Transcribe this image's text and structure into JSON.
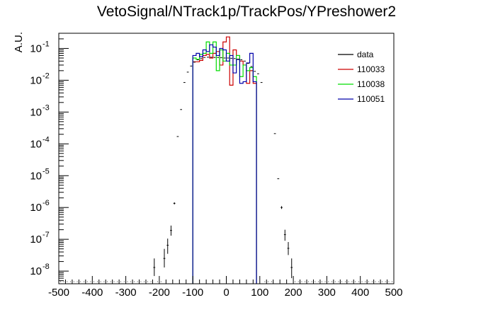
{
  "chart_data": {
    "type": "histogram",
    "title": "VetoSignal/NTrack1p/TrackPos/YPreshower2",
    "ylabel": "A.U.",
    "xlabel": "",
    "xlim": [
      -500,
      500
    ],
    "ylim": [
      4e-09,
      0.3
    ],
    "yscale": "log",
    "grid": false,
    "legend_position": "top-right",
    "colors": {
      "data": "#000000",
      "110033": "#cc0000",
      "110038": "#00dd00",
      "110051": "#0000aa"
    },
    "x_ticks": [
      "-500",
      "-400",
      "-300",
      "-200",
      "-100",
      "0",
      "100",
      "200",
      "300",
      "400",
      "500"
    ],
    "y_ticks": [
      {
        "base": "10",
        "exp": "-8",
        "value": 1e-08
      },
      {
        "base": "10",
        "exp": "-7",
        "value": 1e-07
      },
      {
        "base": "10",
        "exp": "-6",
        "value": 1e-06
      },
      {
        "base": "10",
        "exp": "-5",
        "value": 1e-05
      },
      {
        "base": "10",
        "exp": "-4",
        "value": 0.0001
      },
      {
        "base": "10",
        "exp": "-3",
        "value": 0.001
      },
      {
        "base": "10",
        "exp": "-2",
        "value": 0.01
      },
      {
        "base": "10",
        "exp": "-1",
        "value": 0.1
      }
    ],
    "bin_width": 10,
    "data_points": [
      {
        "x": -215,
        "y": 1.3e-08,
        "err": [
          6e-09,
          1.2e-08
        ]
      },
      {
        "x": -185,
        "y": 2.5e-08,
        "err": [
          1.2e-08,
          2.5e-08
        ]
      },
      {
        "x": -175,
        "y": 6.5e-08,
        "err": [
          3e-08,
          4e-08
        ]
      },
      {
        "x": -165,
        "y": 1.9e-07,
        "err": [
          6e-08,
          8e-08
        ]
      },
      {
        "x": -155,
        "y": 1.35e-06,
        "err": [
          1e-07,
          1e-07
        ]
      },
      {
        "x": -145,
        "y": 0.00017,
        "err": [
          0,
          0
        ]
      },
      {
        "x": -135,
        "y": 0.0012,
        "err": [
          0,
          0
        ]
      },
      {
        "x": -125,
        "y": 0.0085,
        "err": [
          0,
          0
        ]
      },
      {
        "x": -115,
        "y": 0.018,
        "err": [
          0,
          0
        ]
      },
      {
        "x": -105,
        "y": 0.028,
        "err": [
          0,
          0
        ]
      },
      {
        "x": -95,
        "y": 0.037,
        "err": [
          0,
          0
        ]
      },
      {
        "x": -85,
        "y": 0.044,
        "err": [
          0,
          0
        ]
      },
      {
        "x": -75,
        "y": 0.048,
        "err": [
          0,
          0
        ]
      },
      {
        "x": -65,
        "y": 0.052,
        "err": [
          0,
          0
        ]
      },
      {
        "x": -55,
        "y": 0.053,
        "err": [
          0,
          0
        ]
      },
      {
        "x": -45,
        "y": 0.053,
        "err": [
          0,
          0
        ]
      },
      {
        "x": -35,
        "y": 0.052,
        "err": [
          0,
          0
        ]
      },
      {
        "x": -25,
        "y": 0.052,
        "err": [
          0,
          0
        ]
      },
      {
        "x": -15,
        "y": 0.051,
        "err": [
          0,
          0
        ]
      },
      {
        "x": -5,
        "y": 0.05,
        "err": [
          0,
          0
        ]
      },
      {
        "x": 5,
        "y": 0.05,
        "err": [
          0,
          0
        ]
      },
      {
        "x": 15,
        "y": 0.049,
        "err": [
          0,
          0
        ]
      },
      {
        "x": 25,
        "y": 0.048,
        "err": [
          0,
          0
        ]
      },
      {
        "x": 35,
        "y": 0.046,
        "err": [
          0,
          0
        ]
      },
      {
        "x": 45,
        "y": 0.044,
        "err": [
          0,
          0
        ]
      },
      {
        "x": 55,
        "y": 0.04,
        "err": [
          0,
          0
        ]
      },
      {
        "x": 65,
        "y": 0.034,
        "err": [
          0,
          0
        ]
      },
      {
        "x": 75,
        "y": 0.027,
        "err": [
          0,
          0
        ]
      },
      {
        "x": 85,
        "y": 0.019,
        "err": [
          0,
          0
        ]
      },
      {
        "x": 95,
        "y": 0.016,
        "err": [
          0,
          0
        ]
      },
      {
        "x": 105,
        "y": 0.0085,
        "err": [
          0,
          0
        ]
      },
      {
        "x": 145,
        "y": 0.00021,
        "err": [
          0,
          0
        ]
      },
      {
        "x": 155,
        "y": 8e-06,
        "err": [
          0,
          0
        ]
      },
      {
        "x": 165,
        "y": 1e-06,
        "err": [
          1e-07,
          1e-07
        ]
      },
      {
        "x": 175,
        "y": 1.4e-07,
        "err": [
          5e-08,
          6e-08
        ]
      },
      {
        "x": 185,
        "y": 5.2e-08,
        "err": [
          2e-08,
          3e-08
        ]
      },
      {
        "x": 195,
        "y": 1.3e-08,
        "err": [
          7e-09,
          1.2e-08
        ]
      }
    ],
    "series": [
      {
        "name": "110033",
        "x_edges": [
          -100,
          -90,
          -80,
          -70,
          -60,
          -50,
          -40,
          -30,
          -20,
          -10,
          0,
          10,
          20,
          30,
          40,
          50,
          60,
          70,
          80,
          90
        ],
        "values": [
          0.038,
          0.038,
          0.042,
          0.06,
          0.065,
          0.05,
          0.07,
          0.08,
          0.03,
          0.16,
          0.23,
          0.007,
          0.09,
          0.06,
          0.04,
          0.03,
          0.008,
          0.02,
          0.008
        ]
      },
      {
        "name": "110038",
        "x_edges": [
          -100,
          -90,
          -80,
          -70,
          -60,
          -50,
          -40,
          -30,
          -20,
          -10,
          0,
          10,
          20,
          30,
          40,
          50,
          60,
          70,
          80,
          90
        ],
        "values": [
          0.05,
          0.045,
          0.065,
          0.07,
          0.16,
          0.07,
          0.16,
          0.02,
          0.09,
          0.04,
          0.07,
          0.03,
          0.03,
          0.06,
          0.013,
          0.03,
          0.02,
          0.025,
          0.013
        ]
      },
      {
        "name": "110051",
        "x_edges": [
          -100,
          -90,
          -80,
          -70,
          -60,
          -50,
          -40,
          -30,
          -20,
          -10,
          0,
          10,
          20,
          30,
          40,
          50,
          60,
          70,
          80,
          90
        ],
        "values": [
          0.06,
          0.07,
          0.055,
          0.09,
          0.08,
          0.13,
          0.11,
          0.06,
          0.1,
          0.09,
          0.04,
          0.06,
          0.017,
          0.045,
          0.008,
          0.009,
          0.035,
          0.07,
          0.009
        ]
      }
    ],
    "legend": [
      "data",
      "110033",
      "110038",
      "110051"
    ]
  }
}
